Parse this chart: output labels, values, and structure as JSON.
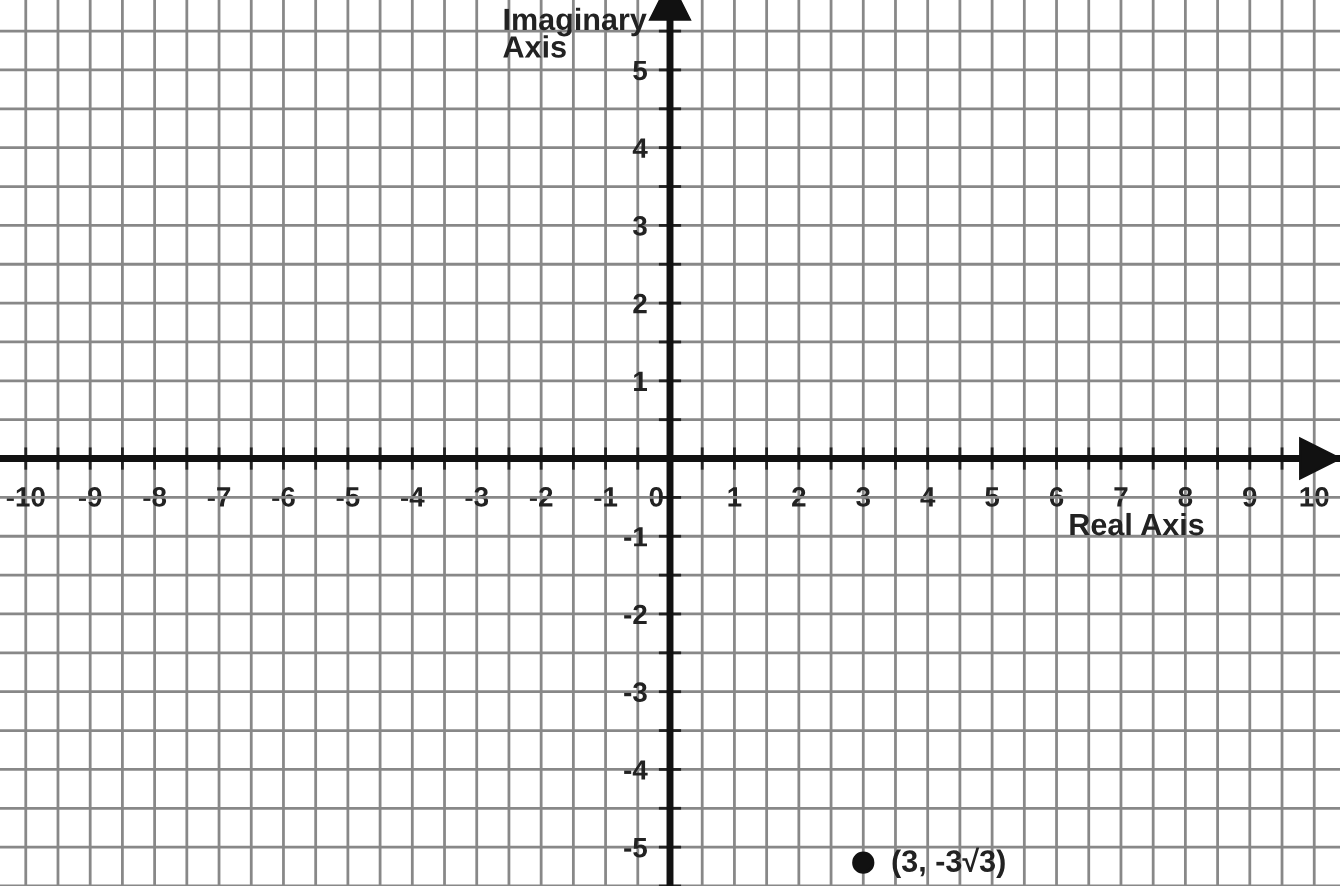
{
  "chart_data": {
    "type": "scatter",
    "xlabel": "Real Axis",
    "ylabel": "Imaginary\nAxis",
    "x": [
      3
    ],
    "values": [
      -5.2
    ],
    "color": "#111111",
    "marker": "circle",
    "annotations": [
      {
        "text": "(3, -3√3)",
        "x": 3,
        "y": -5.2
      }
    ],
    "xlim": [
      -10.4,
      10.4
    ],
    "ylim": [
      -5.5,
      5.9
    ],
    "xticks": [
      -10,
      {
        "value": -9.5,
        "label": null
      },
      -9,
      {
        "value": -8.5,
        "label": null
      },
      -8,
      {
        "value": -7.5,
        "label": null
      },
      -7,
      {
        "value": -6.5,
        "label": null
      },
      -6,
      {
        "value": -5.5,
        "label": null
      },
      -5,
      {
        "value": -4.5,
        "label": null
      },
      -4,
      {
        "value": -3.5,
        "label": null
      },
      -3,
      {
        "value": -2.5,
        "label": null
      },
      -2,
      {
        "value": -1.5,
        "label": null
      },
      -1,
      {
        "value": -0.5,
        "label": null
      },
      0,
      {
        "value": 0.5,
        "label": null
      },
      1,
      {
        "value": 1.5,
        "label": null
      },
      2,
      {
        "value": 2.5,
        "label": null
      },
      3,
      {
        "value": 3.5,
        "label": null
      },
      4,
      {
        "value": 4.5,
        "label": null
      },
      5,
      {
        "value": 5.5,
        "label": null
      },
      6,
      {
        "value": 6.5,
        "label": null
      },
      7,
      {
        "value": 7.5,
        "label": null
      },
      8,
      {
        "value": 8.5,
        "label": null
      },
      9,
      {
        "value": 9.5,
        "label": null
      },
      10
    ],
    "yticks": [
      {
        "value": -5.5,
        "label": null
      },
      -5,
      {
        "value": -4.5,
        "label": null
      },
      -4,
      {
        "value": -3.5,
        "label": null
      },
      -3,
      {
        "value": -2.5,
        "label": null
      },
      -2,
      {
        "value": -1.5,
        "label": null
      },
      -1,
      {
        "value": -0.5,
        "label": null
      },
      {
        "value": 0,
        "label": null
      },
      {
        "value": 0.5,
        "label": null
      },
      1,
      {
        "value": 1.5,
        "label": null
      },
      2,
      {
        "value": 2.5,
        "label": null
      },
      3,
      {
        "value": 3.5,
        "label": null
      },
      4,
      {
        "value": 4.5,
        "label": null
      },
      5,
      {
        "value": 5.5,
        "label": null
      }
    ],
    "grid": true
  }
}
